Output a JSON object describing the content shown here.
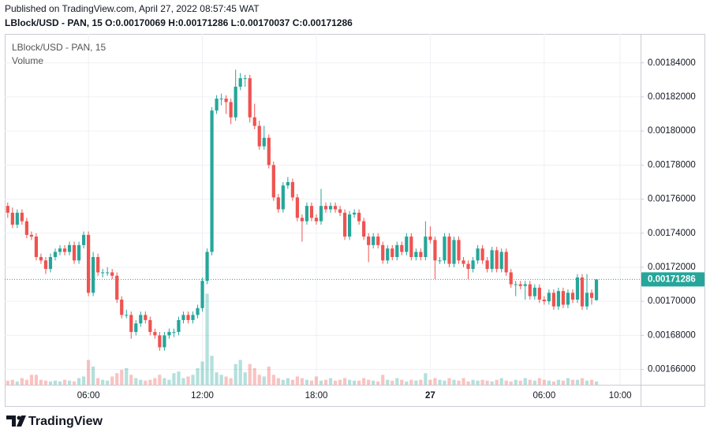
{
  "header": {
    "published": "Published on TradingView.com, April 27, 2022 08:57:45 WAT",
    "symbol": "LBlock/USD - PAN, 15",
    "o_label": "O:",
    "h_label": "H:",
    "l_label": "L:",
    "c_label": "C:"
  },
  "chart_data": {
    "type": "candlestick",
    "legend": "LBlock/USD - PAN, 15",
    "volume_label": "Volume",
    "up_color": "#26a69a",
    "down_color": "#ef5350",
    "grid": true,
    "ylim": [
      0.001651,
      0.001857
    ],
    "yticks": [
      {
        "value": 0.00166,
        "label": "0.00166000"
      },
      {
        "value": 0.00168,
        "label": "0.00168000"
      },
      {
        "value": 0.0017,
        "label": "0.00170000"
      },
      {
        "value": 0.00172,
        "label": "0.00172000"
      },
      {
        "value": 0.00174,
        "label": "0.00174000"
      },
      {
        "value": 0.00176,
        "label": "0.00176000"
      },
      {
        "value": 0.00178,
        "label": "0.00178000"
      },
      {
        "value": 0.0018,
        "label": "0.00180000"
      },
      {
        "value": 0.00182,
        "label": "0.00182000"
      },
      {
        "value": 0.00184,
        "label": "0.00184000"
      }
    ],
    "xlim": [
      -0.3,
      133.3
    ],
    "xticks": [
      {
        "value": 17,
        "label": "06:00"
      },
      {
        "value": 41,
        "label": "12:00"
      },
      {
        "value": 65,
        "label": "18:00"
      },
      {
        "value": 89,
        "label": "27"
      },
      {
        "value": 113,
        "label": "06:00"
      },
      {
        "value": 129,
        "label": "10:00"
      }
    ],
    "candles": [
      [
        0.001756,
        0.001758,
        0.001749,
        0.001752
      ],
      [
        0.001752,
        0.001755,
        0.001743,
        0.001745
      ],
      [
        0.001745,
        0.001754,
        0.001743,
        0.001752
      ],
      [
        0.001752,
        0.001754,
        0.001745,
        0.001747
      ],
      [
        0.001747,
        0.001749,
        0.001737,
        0.001739
      ],
      [
        0.001739,
        0.001741,
        0.001736,
        0.001738
      ],
      [
        0.001738,
        0.00174,
        0.001724,
        0.001726
      ],
      [
        0.001726,
        0.001728,
        0.001722,
        0.001724
      ],
      [
        0.001724,
        0.001726,
        0.001716,
        0.001719
      ],
      [
        0.001719,
        0.001728,
        0.001717,
        0.001726
      ],
      [
        0.001726,
        0.001731,
        0.001724,
        0.001729
      ],
      [
        0.001729,
        0.001733,
        0.001727,
        0.001731
      ],
      [
        0.001731,
        0.001733,
        0.001727,
        0.001729
      ],
      [
        0.001729,
        0.001735,
        0.001727,
        0.001733
      ],
      [
        0.001733,
        0.001735,
        0.001722,
        0.001724
      ],
      [
        0.001724,
        0.001735,
        0.001722,
        0.001733
      ],
      [
        0.001733,
        0.001741,
        0.001731,
        0.001739
      ],
      [
        0.001739,
        0.001741,
        0.001703,
        0.001705
      ],
      [
        0.001705,
        0.001729,
        0.001703,
        0.001726
      ],
      [
        0.001726,
        0.001728,
        0.001715,
        0.001717
      ],
      [
        0.001717,
        0.001719,
        0.001714,
        0.001717
      ],
      [
        0.001717,
        0.00172,
        0.001715,
        0.001717
      ],
      [
        0.001717,
        0.001719,
        0.001713,
        0.001715
      ],
      [
        0.001715,
        0.001717,
        0.001699,
        0.001701
      ],
      [
        0.001701,
        0.001703,
        0.00169,
        0.001692
      ],
      [
        0.001692,
        0.001695,
        0.00169,
        0.001692
      ],
      [
        0.001692,
        0.001694,
        0.001678,
        0.001682
      ],
      [
        0.001682,
        0.001689,
        0.00168,
        0.001687
      ],
      [
        0.001687,
        0.001694,
        0.001685,
        0.001692
      ],
      [
        0.001692,
        0.001694,
        0.001687,
        0.001689
      ],
      [
        0.001689,
        0.001691,
        0.00168,
        0.001682
      ],
      [
        0.001682,
        0.001684,
        0.001678,
        0.00168
      ],
      [
        0.00168,
        0.001682,
        0.001671,
        0.001673
      ],
      [
        0.001673,
        0.001682,
        0.001671,
        0.00168
      ],
      [
        0.00168,
        0.001684,
        0.001678,
        0.001682
      ],
      [
        0.001682,
        0.001684,
        0.001679,
        0.001682
      ],
      [
        0.001682,
        0.001691,
        0.00168,
        0.001689
      ],
      [
        0.001689,
        0.001694,
        0.001687,
        0.001692
      ],
      [
        0.001692,
        0.001694,
        0.001687,
        0.001689
      ],
      [
        0.001689,
        0.001694,
        0.001687,
        0.001692
      ],
      [
        0.001692,
        0.001698,
        0.00169,
        0.001696
      ],
      [
        0.001696,
        0.001714,
        0.001694,
        0.001712
      ],
      [
        0.001712,
        0.001731,
        0.00171,
        0.001729
      ],
      [
        0.001729,
        0.001814,
        0.001727,
        0.001812
      ],
      [
        0.001812,
        0.001821,
        0.00181,
        0.001819
      ],
      [
        0.001819,
        0.001822,
        0.001815,
        0.001819
      ],
      [
        0.001819,
        0.001821,
        0.00181,
        0.001817
      ],
      [
        0.001817,
        0.001819,
        0.001804,
        0.001808
      ],
      [
        0.001808,
        0.001836,
        0.001806,
        0.001826
      ],
      [
        0.001826,
        0.001834,
        0.001824,
        0.001831
      ],
      [
        0.001831,
        0.001833,
        0.001826,
        0.001831
      ],
      [
        0.001831,
        0.001833,
        0.001805,
        0.001808
      ],
      [
        0.001808,
        0.001816,
        0.001801,
        0.001803
      ],
      [
        0.001803,
        0.001806,
        0.001789,
        0.001791
      ],
      [
        0.001791,
        0.001803,
        0.001789,
        0.001796
      ],
      [
        0.001796,
        0.001798,
        0.001778,
        0.00178
      ],
      [
        0.00178,
        0.001782,
        0.001759,
        0.001761
      ],
      [
        0.001761,
        0.001763,
        0.001752,
        0.001754
      ],
      [
        0.001754,
        0.00177,
        0.001752,
        0.001768
      ],
      [
        0.001768,
        0.001773,
        0.001766,
        0.00177
      ],
      [
        0.00177,
        0.001772,
        0.001759,
        0.001761
      ],
      [
        0.001761,
        0.001763,
        0.001747,
        0.001749
      ],
      [
        0.001749,
        0.001751,
        0.001735,
        0.001747
      ],
      [
        0.001747,
        0.001758,
        0.001745,
        0.001756
      ],
      [
        0.001756,
        0.001758,
        0.001747,
        0.001749
      ],
      [
        0.001749,
        0.001751,
        0.001745,
        0.001747
      ],
      [
        0.001747,
        0.001766,
        0.001745,
        0.001756
      ],
      [
        0.001756,
        0.001758,
        0.001752,
        0.001754
      ],
      [
        0.001754,
        0.001758,
        0.001752,
        0.001756
      ],
      [
        0.001756,
        0.001758,
        0.001752,
        0.001754
      ],
      [
        0.001754,
        0.001756,
        0.00175,
        0.001752
      ],
      [
        0.001752,
        0.001754,
        0.001736,
        0.001738
      ],
      [
        0.001738,
        0.001753,
        0.001736,
        0.001751
      ],
      [
        0.001751,
        0.001754,
        0.001749,
        0.001752
      ],
      [
        0.001752,
        0.001754,
        0.001745,
        0.001747
      ],
      [
        0.001747,
        0.001749,
        0.001736,
        0.001738
      ],
      [
        0.001738,
        0.00174,
        0.001723,
        0.001733
      ],
      [
        0.001733,
        0.00174,
        0.001731,
        0.001738
      ],
      [
        0.001738,
        0.00174,
        0.001731,
        0.001733
      ],
      [
        0.001733,
        0.001735,
        0.001722,
        0.001724
      ],
      [
        0.001724,
        0.001733,
        0.001722,
        0.001731
      ],
      [
        0.001731,
        0.001733,
        0.001724,
        0.001726
      ],
      [
        0.001726,
        0.001735,
        0.001724,
        0.001733
      ],
      [
        0.001733,
        0.001735,
        0.001727,
        0.001729
      ],
      [
        0.001729,
        0.00174,
        0.001727,
        0.001738
      ],
      [
        0.001738,
        0.00174,
        0.001724,
        0.001726
      ],
      [
        0.001726,
        0.001731,
        0.001724,
        0.001729
      ],
      [
        0.001729,
        0.001731,
        0.001724,
        0.001726
      ],
      [
        0.001726,
        0.001747,
        0.001724,
        0.001738
      ],
      [
        0.001738,
        0.001744,
        0.001734,
        0.001736
      ],
      [
        0.001736,
        0.001738,
        0.001713,
        0.001724
      ],
      [
        0.001724,
        0.001726,
        0.001722,
        0.001724
      ],
      [
        0.001724,
        0.00174,
        0.001722,
        0.001738
      ],
      [
        0.001738,
        0.00174,
        0.00172,
        0.001722
      ],
      [
        0.001722,
        0.001738,
        0.00172,
        0.001736
      ],
      [
        0.001736,
        0.001738,
        0.001722,
        0.001724
      ],
      [
        0.001724,
        0.001726,
        0.00172,
        0.001722
      ],
      [
        0.001722,
        0.001724,
        0.001713,
        0.001719
      ],
      [
        0.001719,
        0.001726,
        0.001717,
        0.001724
      ],
      [
        0.001724,
        0.001733,
        0.001722,
        0.001731
      ],
      [
        0.001731,
        0.001733,
        0.001722,
        0.001724
      ],
      [
        0.001724,
        0.001726,
        0.001717,
        0.001719
      ],
      [
        0.001719,
        0.001732,
        0.001717,
        0.00173
      ],
      [
        0.00173,
        0.001732,
        0.001717,
        0.001719
      ],
      [
        0.001719,
        0.001731,
        0.001717,
        0.001729
      ],
      [
        0.001729,
        0.001731,
        0.001715,
        0.001717
      ],
      [
        0.001717,
        0.001719,
        0.001708,
        0.00171
      ],
      [
        0.00171,
        0.001712,
        0.001703,
        0.00171
      ],
      [
        0.00171,
        0.001712,
        0.001707,
        0.001709
      ],
      [
        0.001709,
        0.001712,
        0.001701,
        0.00171
      ],
      [
        0.00171,
        0.001712,
        0.001701,
        0.001703
      ],
      [
        0.001703,
        0.00171,
        0.001701,
        0.001708
      ],
      [
        0.001708,
        0.00171,
        0.001699,
        0.001701
      ],
      [
        0.001701,
        0.001703,
        0.001698,
        0.0017
      ],
      [
        0.0017,
        0.001707,
        0.001698,
        0.001705
      ],
      [
        0.001705,
        0.001707,
        0.001695,
        0.001697
      ],
      [
        0.001697,
        0.001708,
        0.001695,
        0.001706
      ],
      [
        0.001706,
        0.001708,
        0.001696,
        0.001698
      ],
      [
        0.001698,
        0.001707,
        0.001696,
        0.001705
      ],
      [
        0.001705,
        0.001707,
        0.001699,
        0.001701
      ],
      [
        0.001701,
        0.001716,
        0.001699,
        0.001714
      ],
      [
        0.001714,
        0.001716,
        0.001695,
        0.001697
      ],
      [
        0.001697,
        0.001716,
        0.001695,
        0.001705
      ],
      [
        0.001705,
        0.001707,
        0.001698,
        0.001702
      ],
      [
        0.00170069,
        0.00171286,
        0.00170037,
        0.00171286
      ]
    ],
    "volume": [
      5,
      6,
      4,
      8,
      6,
      12,
      12,
      6,
      5,
      4,
      5,
      4,
      6,
      5,
      4,
      8,
      10,
      30,
      22,
      8,
      6,
      5,
      10,
      14,
      18,
      20,
      12,
      8,
      6,
      5,
      6,
      8,
      12,
      8,
      6,
      14,
      16,
      8,
      10,
      12,
      20,
      28,
      110,
      35,
      15,
      12,
      10,
      8,
      25,
      30,
      15,
      25,
      20,
      12,
      10,
      22,
      12,
      8,
      6,
      8,
      6,
      10,
      8,
      6,
      5,
      10,
      5,
      6,
      8,
      5,
      6,
      8,
      6,
      5,
      5,
      8,
      6,
      5,
      4,
      12,
      6,
      5,
      8,
      6,
      4,
      6,
      5,
      6,
      14,
      6,
      8,
      6,
      5,
      8,
      6,
      5,
      8,
      4,
      6,
      5,
      6,
      5,
      4,
      6,
      8,
      5,
      4,
      6,
      5,
      8,
      6,
      5,
      8,
      6,
      5,
      4,
      6,
      5,
      8,
      6,
      6,
      8,
      5,
      6,
      4
    ]
  },
  "footer": {
    "brand": "TradingView"
  }
}
